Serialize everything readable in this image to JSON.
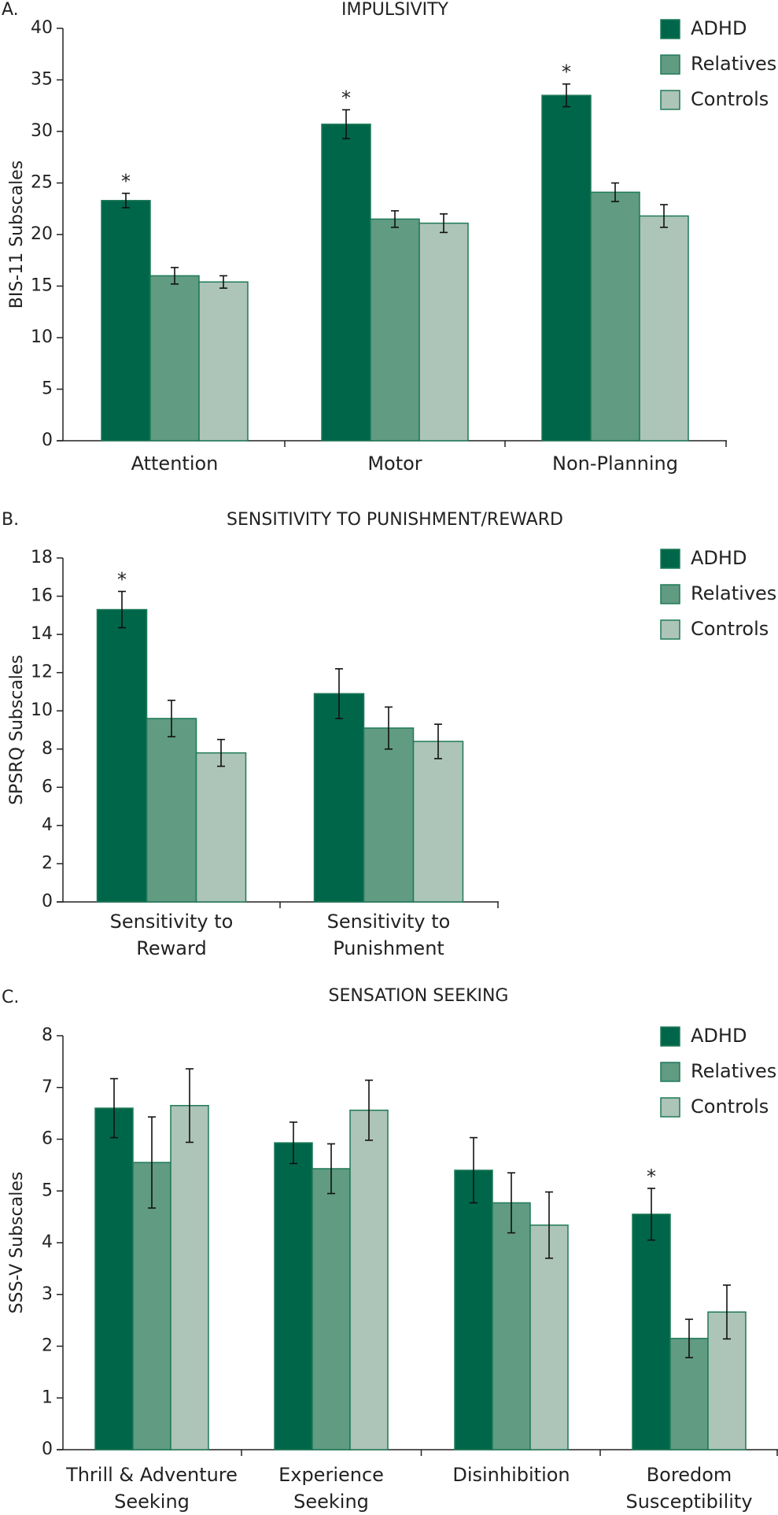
{
  "colors": {
    "adhd": "#00664a",
    "relatives": "#609b82",
    "controls": "#adc4b8",
    "bar_edge": "#1e7a58",
    "axis": "#222222"
  },
  "legend": [
    "ADHD",
    "Relatives",
    "Controls"
  ],
  "chart_data": [
    {
      "type": "bar",
      "panel": "A.",
      "title": "IMPULSIVITY",
      "ylabel": "BIS-11 Subscales",
      "xlabel": "",
      "ylim": [
        0,
        40
      ],
      "yticks": [
        0,
        5,
        10,
        15,
        20,
        25,
        30,
        35,
        40
      ],
      "categories": [
        [
          "Attention"
        ],
        [
          "Motor"
        ],
        [
          "Non-Planning"
        ]
      ],
      "series": [
        {
          "name": "ADHD",
          "values": [
            23.3,
            30.7,
            33.5
          ],
          "errors": [
            0.7,
            1.4,
            1.1
          ]
        },
        {
          "name": "Relatives",
          "values": [
            16.0,
            21.5,
            24.1
          ],
          "errors": [
            0.8,
            0.8,
            0.9
          ]
        },
        {
          "name": "Controls",
          "values": [
            15.4,
            21.1,
            21.8
          ],
          "errors": [
            0.6,
            0.9,
            1.1
          ]
        }
      ],
      "significance": [
        {
          "series": 0,
          "category": 0,
          "label": "*"
        },
        {
          "series": 0,
          "category": 1,
          "label": "*"
        },
        {
          "series": 0,
          "category": 2,
          "label": "*"
        }
      ]
    },
    {
      "type": "bar",
      "panel": "B.",
      "title": "SENSITIVITY TO PUNISHMENT/REWARD",
      "ylabel": "SPSRQ Subscales",
      "xlabel": "",
      "ylim": [
        0,
        18
      ],
      "yticks": [
        0,
        2,
        4,
        6,
        8,
        10,
        12,
        14,
        16,
        18
      ],
      "categories": [
        [
          "Sensitivity to",
          "Reward"
        ],
        [
          "Sensitivity to",
          "Punishment"
        ]
      ],
      "series": [
        {
          "name": "ADHD",
          "values": [
            15.3,
            10.9
          ],
          "errors": [
            0.95,
            1.3
          ]
        },
        {
          "name": "Relatives",
          "values": [
            9.6,
            9.1
          ],
          "errors": [
            0.95,
            1.1
          ]
        },
        {
          "name": "Controls",
          "values": [
            7.8,
            8.4
          ],
          "errors": [
            0.7,
            0.9
          ]
        }
      ],
      "significance": [
        {
          "series": 0,
          "category": 0,
          "label": "*"
        }
      ]
    },
    {
      "type": "bar",
      "panel": "C.",
      "title": "SENSATION SEEKING",
      "ylabel": "SSS-V Subscales",
      "xlabel": "",
      "ylim": [
        0,
        8
      ],
      "yticks": [
        0,
        1,
        2,
        3,
        4,
        5,
        6,
        7,
        8
      ],
      "categories": [
        [
          "Thrill & Adventure",
          "Seeking"
        ],
        [
          "Experience",
          "Seeking"
        ],
        [
          "Disinhibition"
        ],
        [
          "Boredom",
          "Susceptibility"
        ]
      ],
      "series": [
        {
          "name": "ADHD",
          "values": [
            6.6,
            5.93,
            5.4,
            4.55
          ],
          "errors": [
            0.57,
            0.4,
            0.63,
            0.5
          ]
        },
        {
          "name": "Relatives",
          "values": [
            5.55,
            5.43,
            4.77,
            2.15
          ],
          "errors": [
            0.88,
            0.48,
            0.58,
            0.37
          ]
        },
        {
          "name": "Controls",
          "values": [
            6.65,
            6.56,
            4.34,
            2.66
          ],
          "errors": [
            0.71,
            0.58,
            0.64,
            0.52
          ]
        }
      ],
      "significance": [
        {
          "series": 0,
          "category": 3,
          "label": "*"
        }
      ]
    }
  ]
}
